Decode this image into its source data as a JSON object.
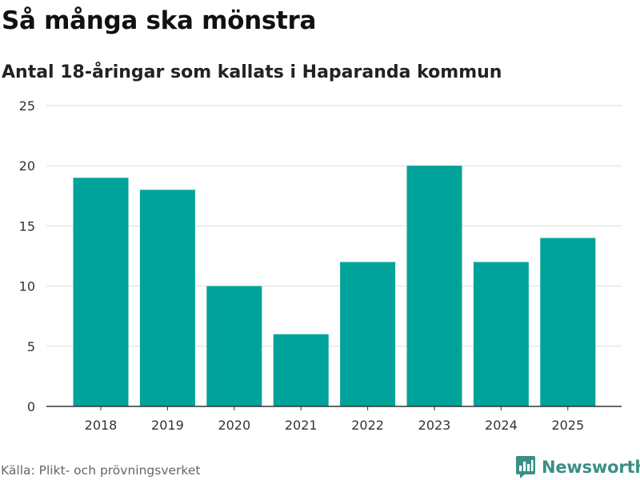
{
  "title": "Så många ska mönstra",
  "subtitle": "Antal 18-åringar som kallats i Haparanda kommun",
  "source": "Källa: Plikt- och prövningsverket",
  "brand": {
    "name": "Newsworthy",
    "icon": "newsworthy-logo-icon",
    "color": "#3b8f84"
  },
  "colors": {
    "bar": "#00a39a",
    "grid": "#dddddd",
    "axis": "#333333"
  },
  "chart_data": {
    "type": "bar",
    "title": "Så många ska mönstra",
    "subtitle": "Antal 18-åringar som kallats i Haparanda kommun",
    "xlabel": "",
    "ylabel": "",
    "categories": [
      "2018",
      "2019",
      "2020",
      "2021",
      "2022",
      "2023",
      "2024",
      "2025"
    ],
    "values": [
      19,
      18,
      10,
      6,
      12,
      20,
      12,
      14
    ],
    "ylim": [
      0,
      25
    ],
    "yticks": [
      0,
      5,
      10,
      15,
      20,
      25
    ],
    "grid": true,
    "legend": "none"
  }
}
